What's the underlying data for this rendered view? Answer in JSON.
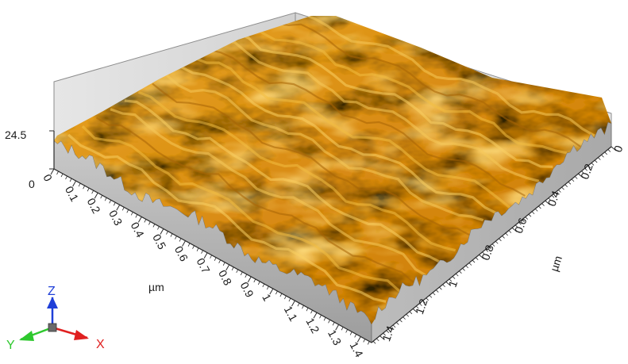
{
  "plot": {
    "z_max_label": "24.5",
    "z_min_label": "0",
    "x_unit": "µm",
    "y_unit": "µm",
    "x_ticks": [
      "0",
      "0.1",
      "0.2",
      "0.3",
      "0.4",
      "0.5",
      "0.6",
      "0.7",
      "0.8",
      "0.9",
      "1",
      "1.1",
      "1.2",
      "1.3",
      "1.4"
    ],
    "y_ticks": [
      "0",
      "0.2",
      "0.4",
      "0.6",
      "0.8",
      "1",
      "1.2",
      "1.4"
    ]
  },
  "triad": {
    "x_label": "X",
    "y_label": "Y",
    "z_label": "Z",
    "x_color": "#e02020",
    "y_color": "#2ec82e",
    "z_color": "#1f3fd8"
  },
  "colors": {
    "surface_high": "#f7c64a",
    "surface_mid": "#d98a10",
    "surface_low": "#3a2a08",
    "wall_back": "#dcdcdc",
    "base_side": "#b8b8b8"
  }
}
